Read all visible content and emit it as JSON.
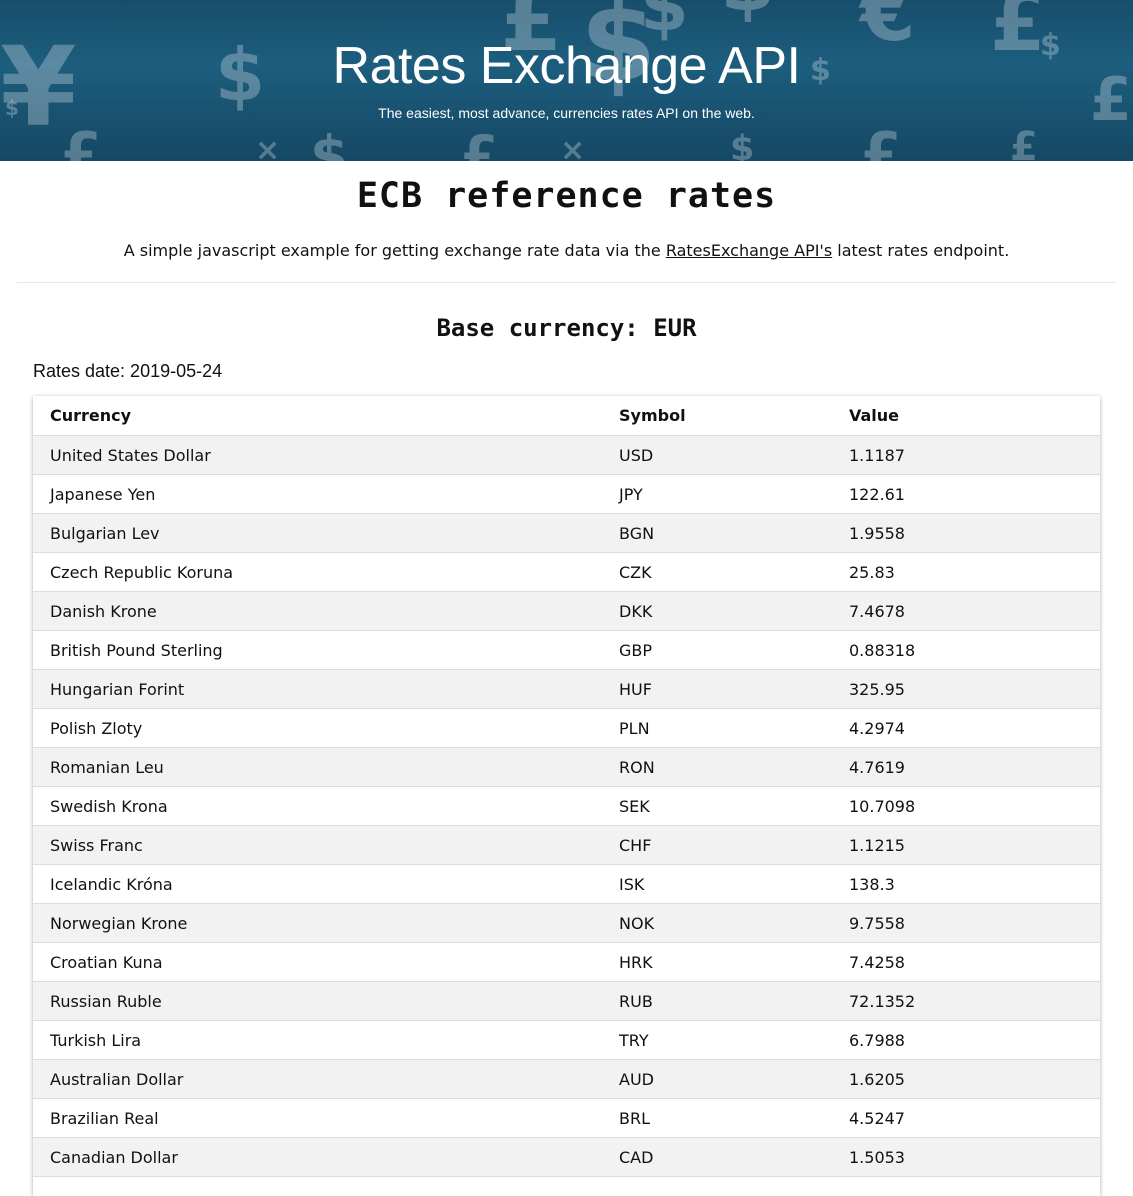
{
  "hero": {
    "title": "Rates Exchange API",
    "subtitle": "The easiest, most advance, currencies rates API on the web."
  },
  "page": {
    "heading": "ECB reference rates",
    "intro_prefix": "A simple javascript example for getting exchange rate data via the ",
    "intro_link": "RatesExchange API's",
    "intro_suffix": " latest rates endpoint.",
    "base_currency": "Base currency: EUR",
    "rates_date": "Rates date: 2019-05-24"
  },
  "table": {
    "headers": [
      "Currency",
      "Symbol",
      "Value"
    ],
    "rows": [
      [
        "United States Dollar",
        "USD",
        "1.1187"
      ],
      [
        "Japanese Yen",
        "JPY",
        "122.61"
      ],
      [
        "Bulgarian Lev",
        "BGN",
        "1.9558"
      ],
      [
        "Czech Republic Koruna",
        "CZK",
        "25.83"
      ],
      [
        "Danish Krone",
        "DKK",
        "7.4678"
      ],
      [
        "British Pound Sterling",
        "GBP",
        "0.88318"
      ],
      [
        "Hungarian Forint",
        "HUF",
        "325.95"
      ],
      [
        "Polish Zloty",
        "PLN",
        "4.2974"
      ],
      [
        "Romanian Leu",
        "RON",
        "4.7619"
      ],
      [
        "Swedish Krona",
        "SEK",
        "10.7098"
      ],
      [
        "Swiss Franc",
        "CHF",
        "1.1215"
      ],
      [
        "Icelandic Króna",
        "ISK",
        "138.3"
      ],
      [
        "Norwegian Krone",
        "NOK",
        "9.7558"
      ],
      [
        "Croatian Kuna",
        "HRK",
        "7.4258"
      ],
      [
        "Russian Ruble",
        "RUB",
        "72.1352"
      ],
      [
        "Turkish Lira",
        "TRY",
        "6.7988"
      ],
      [
        "Australian Dollar",
        "AUD",
        "1.6205"
      ],
      [
        "Brazilian Real",
        "BRL",
        "4.5247"
      ],
      [
        "Canadian Dollar",
        "CAD",
        "1.5053"
      ]
    ]
  },
  "colors": {
    "hero_background": "#1d5d7e",
    "row_stripe": "#f2f2f2"
  }
}
